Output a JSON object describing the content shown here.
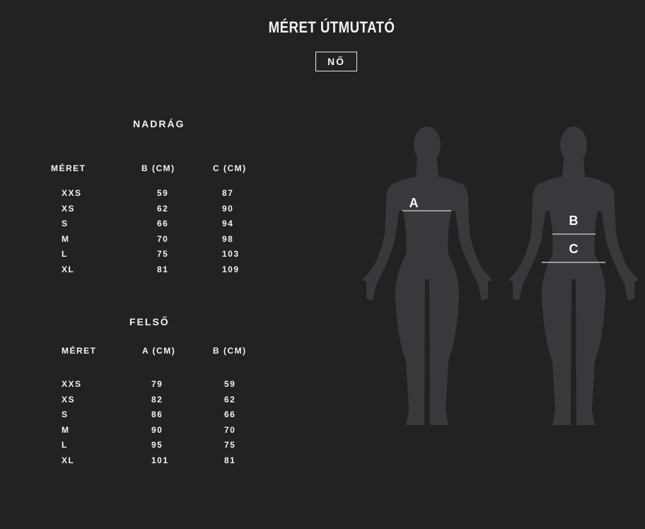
{
  "title": "MÉRET ÚTMUTATÓ",
  "gender_tab": "NŐ",
  "pants": {
    "heading": "NADRÁG",
    "headers": [
      "MÉRET",
      "B  (CM)",
      "C (CM)"
    ],
    "rows": [
      [
        "XXS",
        "59",
        "87"
      ],
      [
        "XS",
        "62",
        "90"
      ],
      [
        "S",
        "66",
        "94"
      ],
      [
        "M",
        "70",
        "98"
      ],
      [
        "L",
        "75",
        "103"
      ],
      [
        "XL",
        "81",
        "109"
      ]
    ]
  },
  "top": {
    "heading": "FELSŐ",
    "headers": [
      "MÉRET",
      "A  (CM)",
      "B (CM)"
    ],
    "rows": [
      [
        "XXS",
        "79",
        "59"
      ],
      [
        "XS",
        "82",
        "62"
      ],
      [
        "S",
        "86",
        "66"
      ],
      [
        "M",
        "90",
        "70"
      ],
      [
        "L",
        "95",
        "75"
      ],
      [
        "XL",
        "101",
        "81"
      ]
    ]
  },
  "figures": {
    "label_a": "A",
    "label_b": "B",
    "label_c": "C"
  },
  "colors": {
    "background": "#222222",
    "silhouette": "#3a383c",
    "measure_line": "#9a9a9a",
    "text": "#f2f2f2"
  }
}
